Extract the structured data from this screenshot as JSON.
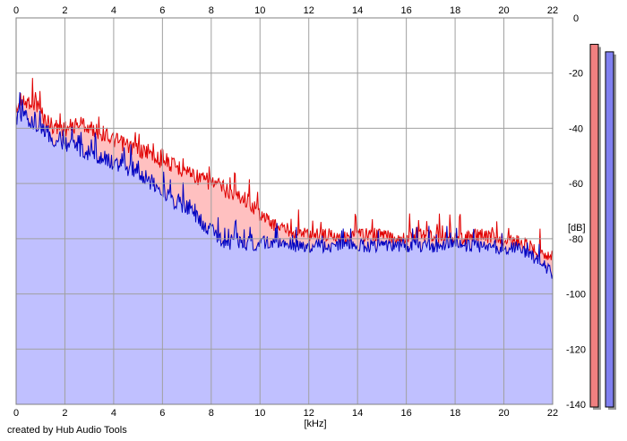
{
  "chart_data": {
    "type": "area",
    "title": "",
    "xlabel": "[kHz]",
    "ylabel": "[dB]",
    "xlim": [
      0,
      22
    ],
    "ylim": [
      -140,
      0
    ],
    "x_ticks": [
      "0",
      "2",
      "4",
      "6",
      "8",
      "10",
      "12",
      "14",
      "16",
      "18",
      "20",
      "22"
    ],
    "y_ticks": [
      "0",
      "-20",
      "-40",
      "-60",
      "-80",
      "-100",
      "-120",
      "-140"
    ],
    "grid": true,
    "series": [
      {
        "channel": "red",
        "color": "#e00000",
        "fill": "#ffc0c0",
        "x": [
          0,
          0.3,
          0.6,
          0.9,
          1.2,
          1.5,
          1.8,
          2.1,
          2.4,
          2.7,
          3.0,
          3.3,
          3.6,
          3.9,
          4.2,
          4.5,
          4.8,
          5.1,
          5.4,
          5.7,
          6.0,
          6.3,
          6.6,
          6.9,
          7.2,
          7.5,
          7.8,
          8.1,
          8.4,
          8.7,
          9.0,
          9.3,
          9.6,
          9.9,
          10.2,
          10.5,
          10.8,
          11.1,
          11.4,
          11.7,
          12.0,
          12.5,
          13.0,
          13.5,
          14.0,
          14.5,
          15.0,
          15.5,
          16.0,
          16.5,
          17.0,
          17.5,
          18.0,
          18.5,
          19.0,
          19.5,
          20.0,
          20.5,
          21.0,
          21.5,
          22.0
        ],
        "values": [
          -30,
          -28,
          -27,
          -29,
          -34,
          -36,
          -37,
          -37,
          -36,
          -35,
          -37,
          -38,
          -39,
          -41,
          -42,
          -43,
          -44,
          -45,
          -46,
          -48,
          -49,
          -50,
          -51,
          -52,
          -53,
          -55,
          -56,
          -57,
          -58,
          -60,
          -61,
          -62,
          -64,
          -67,
          -70,
          -72,
          -73,
          -74,
          -75,
          -75,
          -76,
          -76,
          -76,
          -77,
          -76,
          -76,
          -76,
          -77,
          -77,
          -76,
          -76,
          -77,
          -77,
          -77,
          -76,
          -77,
          -78,
          -78,
          -80,
          -82,
          -84
        ]
      },
      {
        "channel": "blue",
        "color": "#0000c0",
        "fill": "#c0c0ff",
        "x": [
          0,
          0.3,
          0.6,
          0.9,
          1.2,
          1.5,
          1.8,
          2.1,
          2.4,
          2.7,
          3.0,
          3.3,
          3.6,
          3.9,
          4.2,
          4.5,
          4.8,
          5.1,
          5.4,
          5.7,
          6.0,
          6.3,
          6.6,
          6.9,
          7.2,
          7.5,
          7.8,
          8.1,
          8.4,
          8.7,
          9.0,
          9.3,
          9.6,
          9.9,
          10.2,
          10.5,
          10.8,
          11.1,
          11.4,
          11.7,
          12.0,
          12.5,
          13.0,
          13.5,
          14.0,
          14.5,
          15.0,
          15.5,
          16.0,
          16.5,
          17.0,
          17.5,
          18.0,
          18.5,
          19.0,
          19.5,
          20.0,
          20.5,
          21.0,
          21.5,
          22.0
        ],
        "values": [
          -33,
          -32,
          -34,
          -36,
          -39,
          -41,
          -42,
          -43,
          -44,
          -45,
          -46,
          -47,
          -48,
          -49,
          -50,
          -51,
          -52,
          -53,
          -56,
          -58,
          -60,
          -62,
          -64,
          -65,
          -67,
          -70,
          -73,
          -75,
          -77,
          -78,
          -78,
          -78,
          -79,
          -79,
          -79,
          -79,
          -79,
          -79,
          -80,
          -80,
          -80,
          -80,
          -80,
          -80,
          -80,
          -80,
          -80,
          -80,
          -80,
          -80,
          -80,
          -80,
          -80,
          -80,
          -80,
          -80,
          -81,
          -81,
          -83,
          -86,
          -90
        ]
      }
    ],
    "level_meters": {
      "placement": "right",
      "channels": [
        {
          "channel": "left",
          "color": "#f08080",
          "level": 0.97
        },
        {
          "channel": "right",
          "color": "#8080f0",
          "level": 0.95
        }
      ]
    }
  },
  "footer": {
    "credit": "created by Hub Audio Tools"
  }
}
